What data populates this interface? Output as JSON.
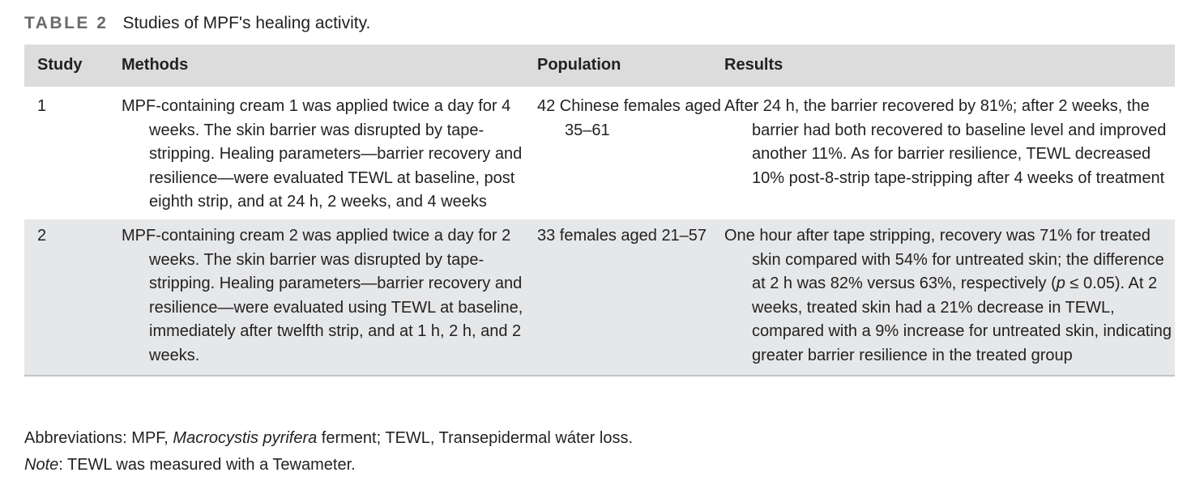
{
  "caption": {
    "label": "TABLE 2",
    "title": "Studies of MPF's healing activity."
  },
  "headers": {
    "study": "Study",
    "methods": "Methods",
    "population": "Population",
    "results": "Results"
  },
  "rows": [
    {
      "study": "1",
      "methods": "MPF-containing cream 1 was applied twice a day for 4 weeks. The skin barrier was disrupted by tape-stripping. Healing parameters—barrier recovery and resilience—were evaluated TEWL at baseline, post eighth strip, and at 24 h, 2 weeks, and 4 weeks",
      "population": "42 Chinese females aged 35–61",
      "results": "After 24 h, the barrier recovered by 81%; after 2 weeks, the barrier had both recovered to baseline level and improved another 11%. As for barrier resilience, TEWL decreased 10% post-8-strip tape-stripping after 4 weeks of treatment"
    },
    {
      "study": "2",
      "methods": "MPF-containing cream 2 was applied twice a day for 2 weeks. The skin barrier was disrupted by tape-stripping. Healing parameters—barrier recovery and resilience—were evaluated using TEWL at baseline, immediately after twelfth strip, and at 1 h, 2 h, and 2 weeks.",
      "population": "33 females aged 21–57",
      "results_a": "One hour after tape stripping, recovery was 71% for treated skin compared with 54% for untreated skin; the difference at 2 h was 82% versus 63%, respectively (",
      "results_p": "p",
      "results_b": " ≤ 0.05). At 2 weeks, treated skin had a 21% decrease in TEWL, compared with a 9% increase for untreated skin, indicating greater barrier resilience in the treated group"
    }
  ],
  "footnotes": {
    "abbrev_a": "Abbreviations: MPF, ",
    "abbrev_italic": "Macrocystis pyrifera",
    "abbrev_b": " ferment; TEWL, Transepidermal wáter loss.",
    "note_label": "Note",
    "note_text": ": TEWL was measured with a Tewameter."
  }
}
